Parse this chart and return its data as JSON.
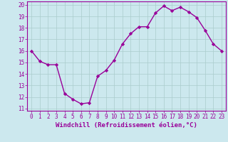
{
  "x": [
    0,
    1,
    2,
    3,
    4,
    5,
    6,
    7,
    8,
    9,
    10,
    11,
    12,
    13,
    14,
    15,
    16,
    17,
    18,
    19,
    20,
    21,
    22,
    23
  ],
  "y": [
    16.0,
    15.1,
    14.8,
    14.8,
    12.3,
    11.8,
    11.4,
    11.5,
    13.8,
    14.3,
    15.2,
    16.6,
    17.5,
    18.1,
    18.1,
    19.3,
    19.9,
    19.5,
    19.8,
    19.4,
    18.9,
    17.8,
    16.6,
    16.0
  ],
  "line_color": "#990099",
  "marker": "D",
  "marker_size": 2.2,
  "linewidth": 1.0,
  "xlabel": "Windchill (Refroidissement éolien,°C)",
  "xlabel_fontsize": 6.5,
  "ylabel_ticks": [
    11,
    12,
    13,
    14,
    15,
    16,
    17,
    18,
    19,
    20
  ],
  "xtick_labels": [
    "0",
    "1",
    "2",
    "3",
    "4",
    "5",
    "6",
    "7",
    "8",
    "9",
    "10",
    "11",
    "12",
    "13",
    "14",
    "15",
    "16",
    "17",
    "18",
    "19",
    "20",
    "21",
    "22",
    "23"
  ],
  "xlim": [
    -0.5,
    23.5
  ],
  "ylim": [
    10.8,
    20.3
  ],
  "bg_color": "#cce8ee",
  "grid_color": "#aacccc",
  "tick_fontsize": 5.5
}
